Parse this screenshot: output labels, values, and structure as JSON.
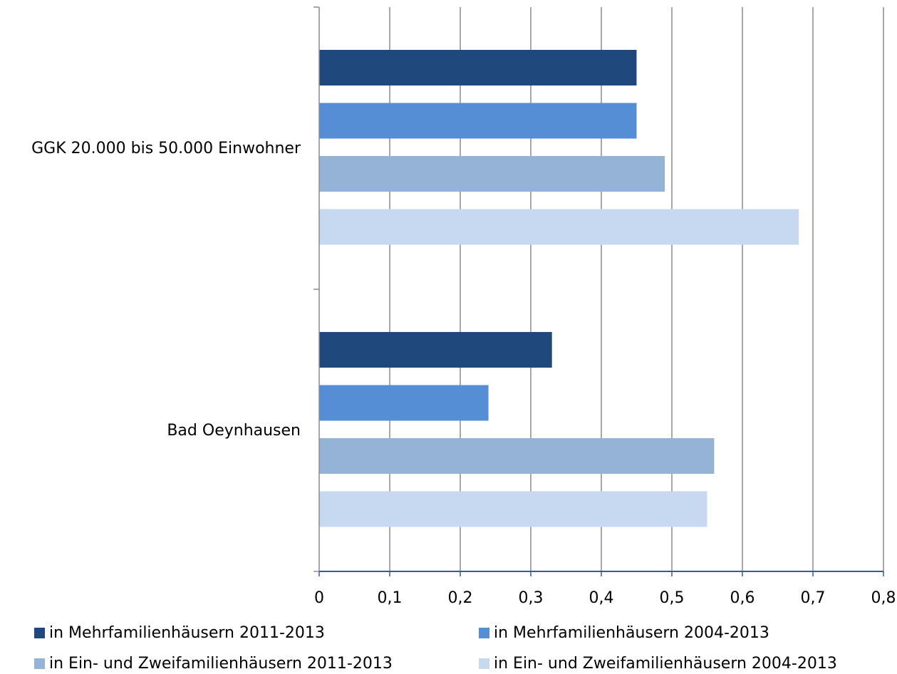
{
  "chart_data": {
    "type": "bar",
    "orientation": "horizontal",
    "categories": [
      "GGK 20.000 bis 50.000 Einwohner",
      "Bad Oeynhausen"
    ],
    "series": [
      {
        "name": "in Mehrfamilienhäusern 2011-2013",
        "color": "#1f497d",
        "values": [
          0.45,
          0.33
        ]
      },
      {
        "name": "in Mehrfamilienhäusern 2004-2013",
        "color": "#558ed5",
        "values": [
          0.45,
          0.24
        ]
      },
      {
        "name": "in Ein- und Zweifamilienhäusern 2011-2013",
        "color": "#95b3d7",
        "values": [
          0.49,
          0.56
        ]
      },
      {
        "name": "in Ein- und Zweifamilienhäusern 2004-2013",
        "color": "#c6d9f1",
        "values": [
          0.68,
          0.55
        ]
      }
    ],
    "xlim": [
      0,
      0.8
    ],
    "xticks": [
      "0",
      "0,1",
      "0,2",
      "0,3",
      "0,4",
      "0,5",
      "0,6",
      "0,7",
      "0,8"
    ],
    "grid": "vertical",
    "legend_position": "bottom"
  }
}
